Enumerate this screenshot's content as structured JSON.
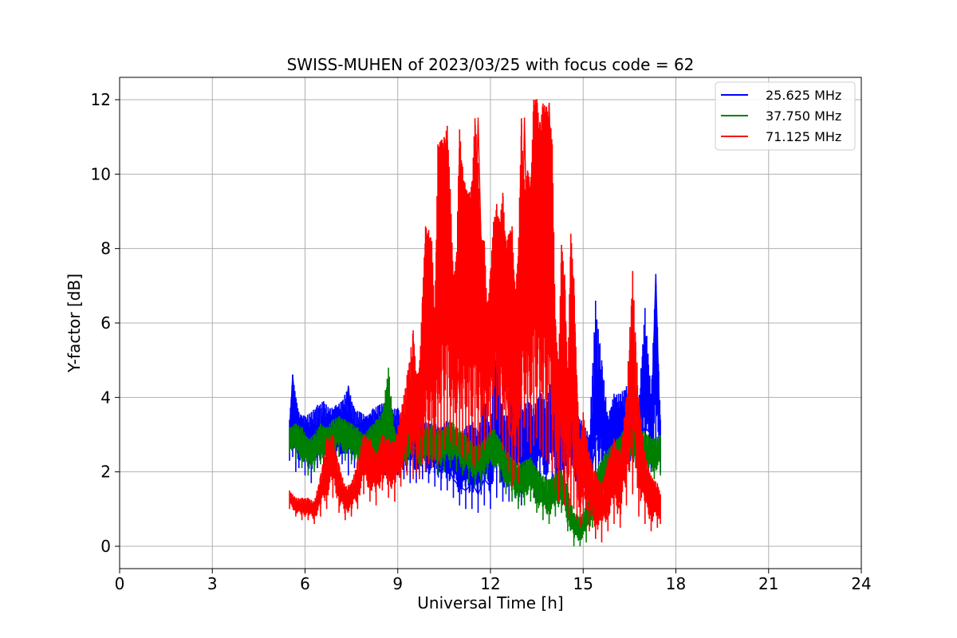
{
  "chart_data": {
    "type": "line",
    "title": "SWISS-MUHEN of 2023/03/25 with focus code = 62",
    "xlabel": "Universal Time [h]",
    "ylabel": "Y-factor [dB]",
    "xlim": [
      0,
      24
    ],
    "ylim": [
      -0.6,
      12.6
    ],
    "xticks": [
      0,
      3,
      6,
      9,
      12,
      15,
      18,
      21,
      24
    ],
    "yticks": [
      0,
      2,
      4,
      6,
      8,
      10,
      12
    ],
    "grid": true,
    "legend_position": "top-right",
    "series": [
      {
        "name": "25.625 MHz",
        "color": "#0000ff",
        "x": [
          5.5,
          5.6,
          5.7,
          5.8,
          6.0,
          6.2,
          6.4,
          6.6,
          6.8,
          7.0,
          7.2,
          7.4,
          7.6,
          7.8,
          8.0,
          8.2,
          8.4,
          8.6,
          8.8,
          9.0,
          9.2,
          9.4,
          9.6,
          9.8,
          10.0,
          10.2,
          10.4,
          10.6,
          10.8,
          11.0,
          11.2,
          11.4,
          11.6,
          11.8,
          12.0,
          12.2,
          12.4,
          12.6,
          12.8,
          13.0,
          13.2,
          13.4,
          13.6,
          13.8,
          14.0,
          14.2,
          14.4,
          14.6,
          14.8,
          15.0,
          15.2,
          15.4,
          15.6,
          15.8,
          16.0,
          16.2,
          16.4,
          16.6,
          16.8,
          17.0,
          17.2,
          17.35,
          17.5
        ],
        "y": [
          3.0,
          4.6,
          3.5,
          2.6,
          2.4,
          3.3,
          2.7,
          3.1,
          2.5,
          3.3,
          2.5,
          4.3,
          2.4,
          3.0,
          2.6,
          3.4,
          2.8,
          3.3,
          2.5,
          3.7,
          2.6,
          3.3,
          2.5,
          3.1,
          2.4,
          2.3,
          2.0,
          2.2,
          1.8,
          1.6,
          1.5,
          1.7,
          1.4,
          1.8,
          1.6,
          2.5,
          1.7,
          2.2,
          2.4,
          1.9,
          2.4,
          2.1,
          2.6,
          2.2,
          2.8,
          1.8,
          2.5,
          2.7,
          2.3,
          2.3,
          1.5,
          2.8,
          3.3,
          2.0,
          3.4,
          2.5,
          3.0,
          3.4,
          2.8,
          3.2,
          3.0,
          7.3,
          2.6
        ],
        "y_low": [
          2.3,
          2.4,
          2.0,
          2.1,
          1.9,
          1.7,
          2.1,
          1.8,
          2.0,
          1.9,
          2.2,
          1.9,
          2.1,
          2.0,
          2.1,
          1.9,
          2.2,
          1.9,
          2.0,
          1.9,
          1.8,
          1.7,
          1.7,
          1.8,
          1.7,
          1.6,
          1.5,
          1.5,
          1.3,
          1.1,
          1.0,
          1.0,
          0.9,
          1.1,
          1.0,
          1.3,
          1.2,
          1.2,
          1.3,
          1.1,
          1.4,
          1.3,
          1.5,
          1.4,
          1.6,
          1.2,
          1.4,
          1.5,
          1.3,
          1.1,
          0.8,
          1.1,
          1.6,
          1.4,
          1.9,
          1.8,
          2.0,
          1.9,
          2.0,
          2.1,
          2.0,
          2.1,
          2.0
        ],
        "y_high": [
          3.4,
          4.6,
          4.0,
          3.6,
          3.5,
          3.6,
          3.8,
          3.9,
          3.7,
          3.8,
          3.9,
          4.3,
          3.7,
          3.6,
          3.5,
          3.7,
          3.8,
          3.9,
          3.7,
          3.7,
          3.4,
          3.6,
          3.5,
          3.4,
          3.3,
          3.3,
          3.2,
          3.4,
          3.1,
          3.0,
          3.2,
          3.4,
          3.1,
          4.0,
          3.2,
          6.0,
          3.5,
          3.6,
          5.5,
          3.6,
          4.0,
          3.7,
          4.2,
          3.9,
          4.6,
          3.5,
          3.9,
          4.1,
          3.6,
          3.3,
          3.0,
          6.6,
          5.0,
          3.5,
          4.1,
          4.1,
          4.3,
          4.1,
          3.9,
          6.4,
          4.1,
          7.3,
          3.4
        ]
      },
      {
        "name": "37.750 MHz",
        "color": "#008000",
        "x": [
          5.5,
          5.7,
          5.9,
          6.1,
          6.3,
          6.5,
          6.7,
          6.9,
          7.1,
          7.3,
          7.5,
          7.7,
          7.9,
          8.1,
          8.3,
          8.5,
          8.7,
          8.9,
          9.1,
          9.3,
          9.5,
          9.7,
          9.9,
          10.1,
          10.3,
          10.5,
          10.7,
          10.9,
          11.1,
          11.3,
          11.5,
          11.7,
          11.9,
          12.1,
          12.3,
          12.5,
          12.7,
          12.9,
          13.1,
          13.3,
          13.5,
          13.7,
          13.9,
          14.1,
          14.3,
          14.5,
          14.7,
          14.9,
          15.1,
          15.3,
          15.5,
          15.7,
          15.9,
          16.1,
          16.3,
          16.5,
          16.7,
          16.9,
          17.1,
          17.3,
          17.5
        ],
        "y": [
          2.9,
          2.8,
          2.6,
          2.3,
          2.5,
          2.8,
          2.7,
          2.9,
          3.0,
          2.9,
          2.8,
          2.7,
          2.4,
          2.6,
          2.8,
          3.0,
          2.8,
          2.5,
          2.4,
          2.6,
          2.7,
          2.5,
          2.6,
          2.7,
          2.5,
          2.6,
          2.8,
          2.6,
          2.5,
          2.3,
          2.1,
          2.2,
          2.4,
          2.6,
          2.3,
          2.0,
          1.8,
          1.6,
          1.7,
          1.8,
          1.5,
          1.3,
          1.2,
          1.4,
          1.5,
          1.0,
          0.4,
          0.3,
          0.6,
          1.2,
          1.6,
          1.9,
          2.1,
          2.3,
          2.5,
          2.6,
          2.7,
          2.5,
          2.4,
          2.3,
          2.5
        ],
        "y_low": [
          2.5,
          2.3,
          2.1,
          1.9,
          2.0,
          2.2,
          2.1,
          2.3,
          2.4,
          2.3,
          2.2,
          2.1,
          1.9,
          2.0,
          2.1,
          2.3,
          2.1,
          1.9,
          1.9,
          2.0,
          2.1,
          1.9,
          2.0,
          2.1,
          1.9,
          2.0,
          2.1,
          2.0,
          1.9,
          1.7,
          1.6,
          1.6,
          1.8,
          2.0,
          1.7,
          1.4,
          1.2,
          1.0,
          1.1,
          1.2,
          0.9,
          0.7,
          0.6,
          0.8,
          0.9,
          0.4,
          0.0,
          0.0,
          0.1,
          0.5,
          0.9,
          1.3,
          1.5,
          1.7,
          1.9,
          2.0,
          2.1,
          1.9,
          1.8,
          1.8,
          1.9
        ],
        "y_high": [
          3.2,
          3.3,
          3.2,
          2.9,
          3.0,
          3.3,
          3.2,
          3.4,
          3.5,
          3.4,
          3.3,
          3.2,
          3.0,
          3.2,
          3.4,
          3.6,
          4.8,
          3.1,
          3.0,
          3.2,
          4.8,
          3.1,
          3.2,
          3.3,
          3.1,
          3.2,
          3.4,
          3.2,
          3.1,
          2.9,
          2.7,
          2.8,
          3.0,
          3.2,
          2.9,
          2.6,
          2.4,
          2.2,
          2.3,
          2.4,
          2.1,
          1.9,
          1.8,
          2.0,
          2.1,
          1.6,
          0.9,
          0.8,
          1.1,
          1.7,
          2.2,
          2.5,
          2.7,
          2.9,
          3.1,
          3.2,
          3.3,
          3.1,
          3.0,
          2.9,
          3.0
        ]
      },
      {
        "name": "71.125 MHz",
        "color": "#ff0000",
        "x": [
          5.5,
          5.7,
          5.9,
          6.1,
          6.3,
          6.5,
          6.7,
          6.9,
          7.1,
          7.3,
          7.5,
          7.7,
          7.9,
          8.1,
          8.3,
          8.5,
          8.7,
          8.9,
          9.1,
          9.3,
          9.5,
          9.6,
          9.7,
          9.8,
          9.9,
          10.0,
          10.1,
          10.2,
          10.3,
          10.4,
          10.5,
          10.6,
          10.7,
          10.8,
          10.9,
          11.0,
          11.1,
          11.2,
          11.3,
          11.4,
          11.5,
          11.6,
          11.7,
          11.8,
          11.9,
          12.0,
          12.1,
          12.2,
          12.3,
          12.4,
          12.5,
          12.6,
          12.7,
          12.8,
          12.9,
          13.0,
          13.1,
          13.2,
          13.3,
          13.4,
          13.5,
          13.6,
          13.7,
          13.8,
          13.9,
          14.0,
          14.1,
          14.2,
          14.3,
          14.4,
          14.5,
          14.6,
          14.7,
          14.8,
          14.9,
          15.0,
          15.2,
          15.4,
          15.6,
          15.8,
          16.0,
          16.2,
          16.4,
          16.6,
          16.8,
          17.0,
          17.2,
          17.4,
          17.5
        ],
        "y": [
          1.4,
          1.1,
          1.0,
          1.0,
          0.9,
          1.3,
          1.6,
          2.1,
          1.4,
          1.1,
          1.2,
          1.5,
          2.3,
          2.0,
          1.7,
          2.4,
          2.0,
          1.8,
          2.6,
          3.2,
          3.1,
          4.2,
          3.0,
          5.5,
          4.0,
          8.1,
          5.2,
          6.0,
          4.3,
          10.0,
          6.5,
          11.0,
          7.0,
          6.0,
          5.2,
          4.0,
          7.5,
          5.5,
          8.5,
          6.0,
          7.5,
          11.5,
          8.0,
          6.5,
          5.5,
          7.0,
          7.5,
          9.0,
          6.5,
          5.5,
          4.5,
          3.3,
          2.8,
          4.2,
          3.0,
          6.0,
          11.5,
          7.0,
          5.5,
          10.0,
          12.0,
          7.5,
          11.5,
          7.0,
          11.9,
          7.5,
          4.0,
          3.0,
          5.5,
          3.5,
          2.2,
          7.5,
          3.0,
          1.8,
          1.2,
          1.5,
          0.9,
          0.8,
          0.7,
          1.2,
          1.5,
          1.0,
          3.2,
          6.2,
          2.0,
          1.3,
          0.9,
          1.0,
          1.2
        ],
        "y_low": [
          1.0,
          0.8,
          0.7,
          0.7,
          0.6,
          0.8,
          1.0,
          1.3,
          0.9,
          0.7,
          0.8,
          1.0,
          1.4,
          1.2,
          1.1,
          1.5,
          1.3,
          1.2,
          1.6,
          1.9,
          1.8,
          2.0,
          1.8,
          2.2,
          2.0,
          2.2,
          2.1,
          2.3,
          2.2,
          2.4,
          2.6,
          3.0,
          2.8,
          2.6,
          2.7,
          2.5,
          2.4,
          2.3,
          2.5,
          2.2,
          2.1,
          2.3,
          2.4,
          2.6,
          2.8,
          3.0,
          3.1,
          3.4,
          3.0,
          2.6,
          2.4,
          2.0,
          1.6,
          1.8,
          1.7,
          2.4,
          3.2,
          2.8,
          2.5,
          2.7,
          2.9,
          2.6,
          2.4,
          2.3,
          2.2,
          2.0,
          1.5,
          1.2,
          1.5,
          1.1,
          0.8,
          1.1,
          1.0,
          0.7,
          0.5,
          0.6,
          0.4,
          0.2,
          0.1,
          0.4,
          0.6,
          0.5,
          1.1,
          1.4,
          0.8,
          0.6,
          0.4,
          0.5,
          0.6
        ],
        "y_high": [
          1.5,
          1.3,
          1.3,
          1.3,
          1.2,
          1.9,
          2.9,
          3.0,
          2.2,
          1.6,
          1.7,
          2.3,
          3.0,
          2.9,
          2.5,
          3.0,
          2.9,
          2.8,
          3.6,
          4.6,
          5.8,
          4.6,
          4.8,
          6.7,
          8.6,
          8.5,
          8.2,
          6.2,
          10.8,
          10.9,
          11.0,
          11.3,
          9.6,
          7.3,
          7.8,
          11.2,
          10.2,
          9.6,
          9.5,
          9.8,
          11.5,
          10.3,
          8.3,
          8.2,
          6.4,
          7.4,
          8.7,
          9.2,
          8.7,
          9.5,
          8.2,
          8.4,
          8.6,
          6.9,
          7.8,
          11.5,
          9.6,
          10.1,
          9.8,
          12.0,
          12.0,
          11.4,
          11.9,
          11.8,
          11.9,
          10.8,
          6.1,
          4.9,
          8.1,
          7.3,
          4.6,
          8.4,
          7.2,
          4.4,
          2.7,
          3.6,
          2.5,
          2.0,
          1.7,
          2.4,
          2.9,
          2.5,
          4.0,
          7.4,
          4.0,
          2.5,
          1.9,
          1.7,
          1.4
        ]
      }
    ]
  }
}
